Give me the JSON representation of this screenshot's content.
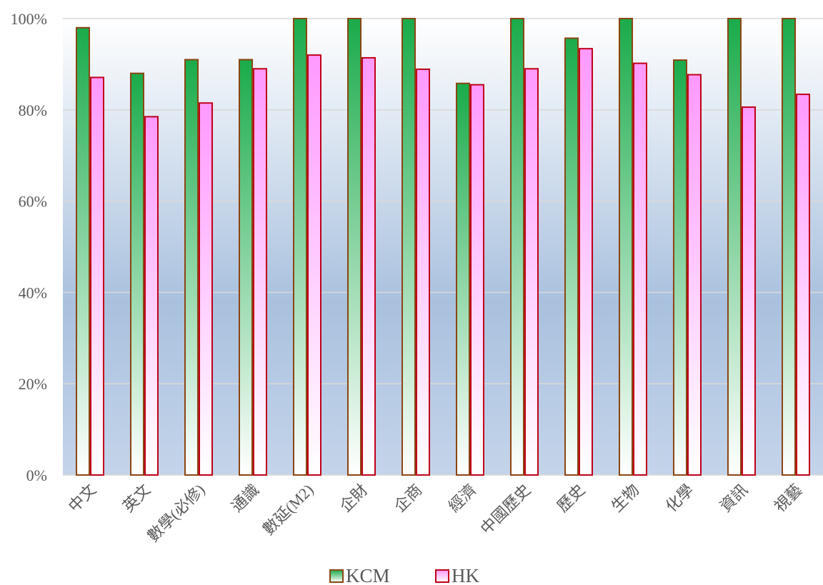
{
  "chart_data": {
    "type": "bar",
    "categories": [
      "中文",
      "英文",
      "數學(必修)",
      "通識",
      "數延(M2)",
      "企財",
      "企商",
      "經濟",
      "中國歷史",
      "歷史",
      "生物",
      "化學",
      "資訊",
      "視藝"
    ],
    "series": [
      {
        "name": "KCM",
        "values": [
          98,
          88,
          91,
          91,
          100,
          100,
          100,
          85.8,
          100,
          95.7,
          100,
          90.9,
          100,
          100
        ]
      },
      {
        "name": "HK",
        "values": [
          87.1,
          78.5,
          81.5,
          89,
          92,
          91.4,
          88.9,
          85.5,
          89,
          93.4,
          90.2,
          87.7,
          80.6,
          83.4
        ]
      }
    ],
    "ylim": [
      0,
      100
    ],
    "ytick_labels": [
      "0%",
      "20%",
      "40%",
      "60%",
      "80%",
      "100%"
    ],
    "grid": true,
    "legend": "bottom",
    "colors": {
      "kcm_top": "#1aab4a",
      "kcm_bottom": "#ffffff",
      "kcm_border": "#8b4513",
      "hk_top": "#ff99ff",
      "hk_bottom": "#ffffff",
      "hk_border": "#c0001a",
      "plot_bg_top": "#ffffff",
      "plot_bg_bottom": "#a9c1de",
      "gridline": "#d9d9d9"
    }
  }
}
